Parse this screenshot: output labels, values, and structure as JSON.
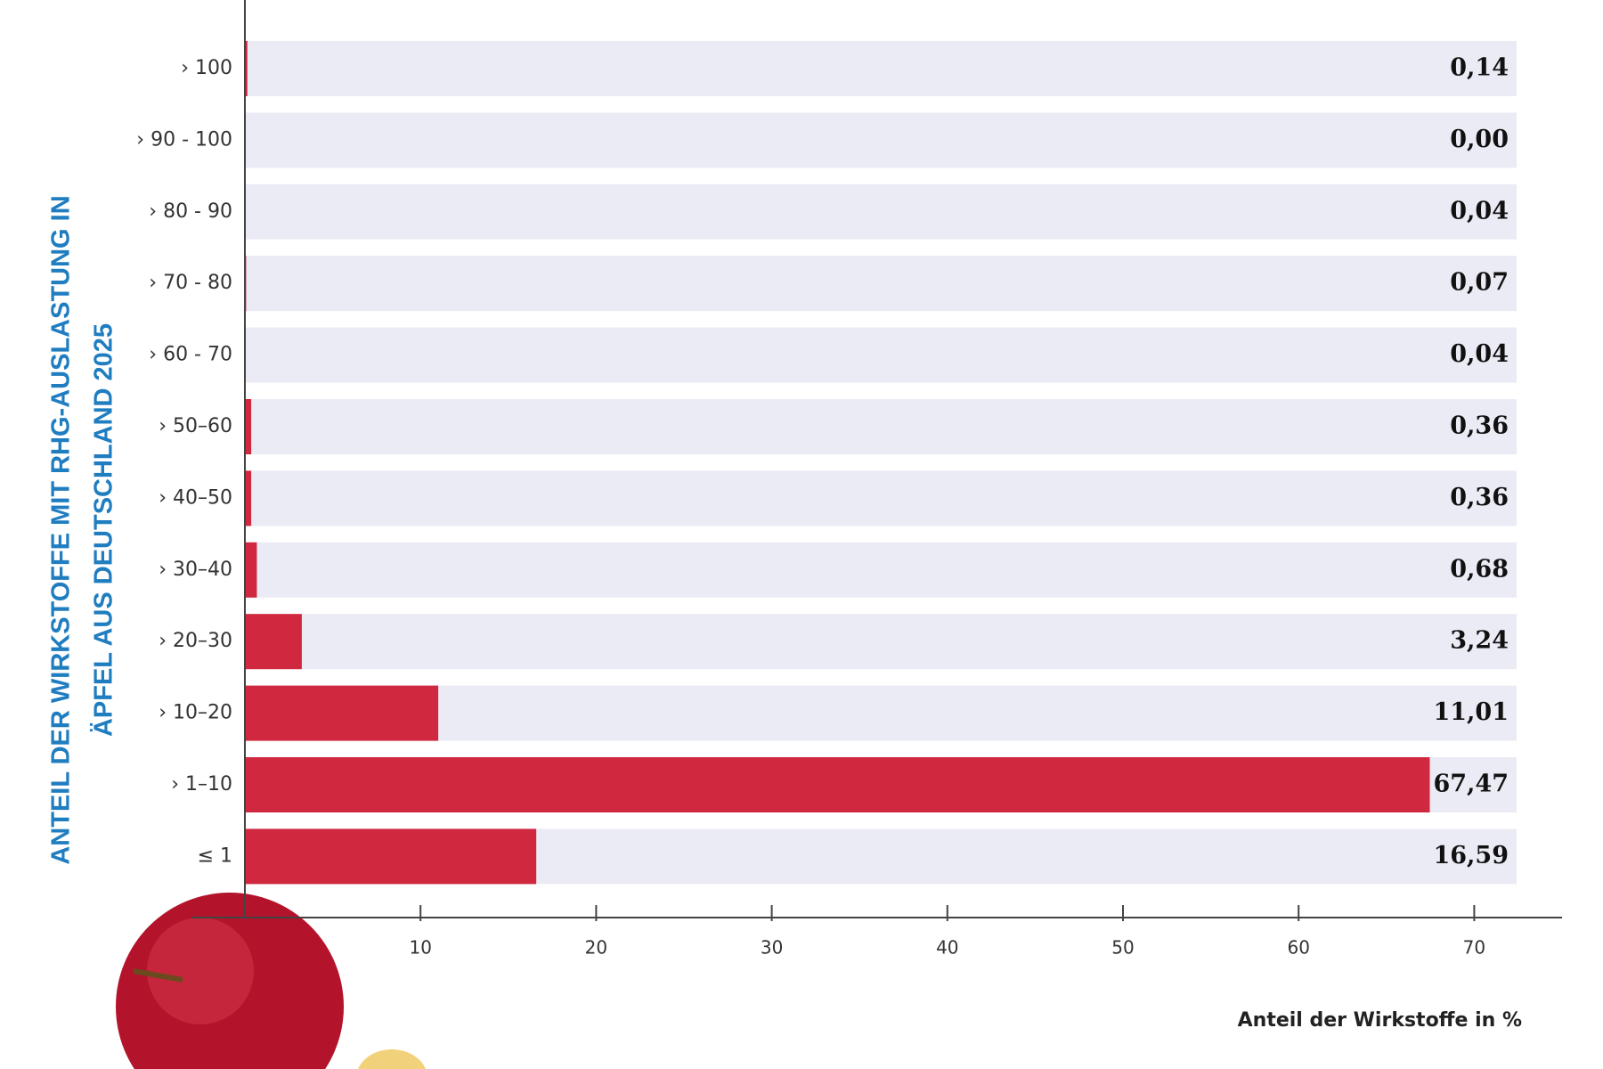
{
  "chart_data": {
    "type": "hbar",
    "y_label_lines": [
      "ANTEIL DER WIRKSTOFFE MIT RHG-AUSLASTUNG IN",
      "ÄPFEL AUS DEUTSCHLAND 2025"
    ],
    "x_label": "Anteil der Wirkstoffe in %",
    "categories": [
      "› 100",
      "› 90 - 100",
      "› 80 - 90",
      "› 70 - 80",
      "› 60 - 70",
      "› 50–60",
      "› 40–50",
      "› 30–40",
      "› 20–30",
      "› 10–20",
      "› 1–10",
      "≤ 1"
    ],
    "values": [
      0.14,
      0.0,
      0.04,
      0.07,
      0.04,
      0.36,
      0.36,
      0.68,
      3.24,
      11.01,
      67.47,
      16.59
    ],
    "value_labels": [
      "0,14",
      "0,00",
      "0,04",
      "0,07",
      "0,04",
      "0,36",
      "0,36",
      "0,68",
      "3,24",
      "11,01",
      "67,47",
      "16,59"
    ],
    "color": "#d0283f",
    "xlim": [
      0,
      75
    ],
    "xticks": [
      10,
      20,
      30,
      40,
      50,
      60,
      70
    ]
  }
}
